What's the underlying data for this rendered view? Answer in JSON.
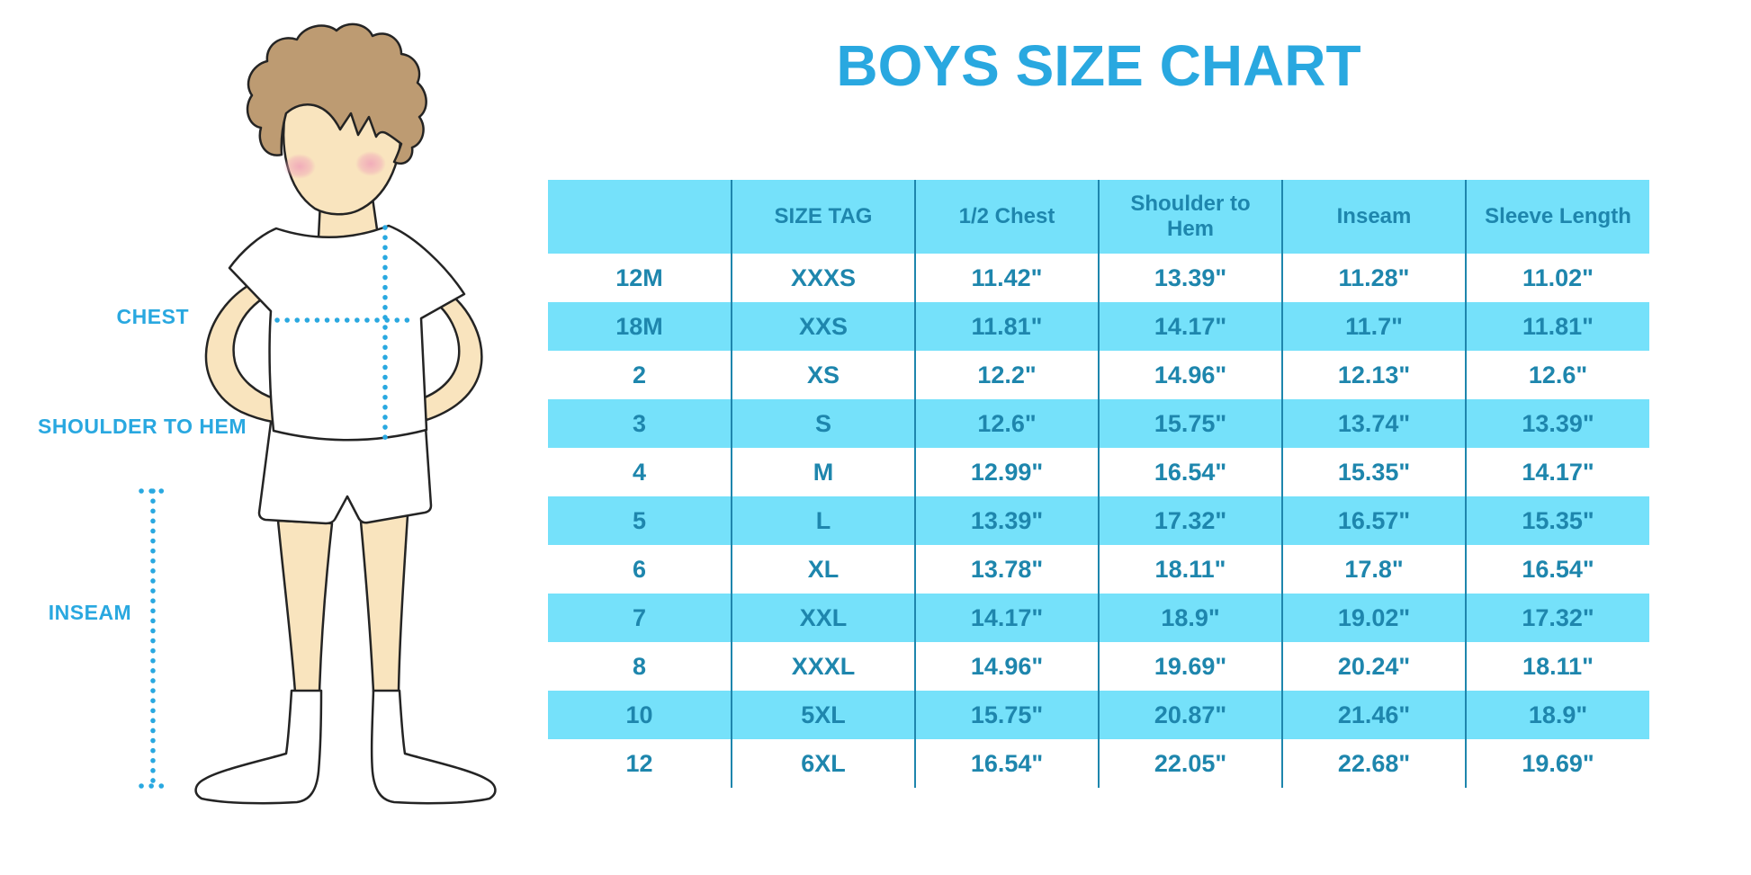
{
  "page": {
    "title": "BOYS SIZE CHART"
  },
  "measure_labels": {
    "chest": "CHEST",
    "shoulder_to_hem": "SHOULDER TO HEM",
    "inseam": "INSEAM"
  },
  "chart_data": {
    "type": "table",
    "title": "BOYS SIZE CHART",
    "units": "inches",
    "columns": [
      "",
      "SIZE TAG",
      "1/2 Chest",
      "Shoulder to\nHem",
      "Inseam",
      "Sleeve Length"
    ],
    "rows": [
      [
        "12M",
        "XXXS",
        "11.42\"",
        "13.39\"",
        "11.28\"",
        "11.02\""
      ],
      [
        "18M",
        "XXS",
        "11.81\"",
        "14.17\"",
        "11.7\"",
        "11.81\""
      ],
      [
        "2",
        "XS",
        "12.2\"",
        "14.96\"",
        "12.13\"",
        "12.6\""
      ],
      [
        "3",
        "S",
        "12.6\"",
        "15.75\"",
        "13.74\"",
        "13.39\""
      ],
      [
        "4",
        "M",
        "12.99\"",
        "16.54\"",
        "15.35\"",
        "14.17\""
      ],
      [
        "5",
        "L",
        "13.39\"",
        "17.32\"",
        "16.57\"",
        "15.35\""
      ],
      [
        "6",
        "XL",
        "13.78\"",
        "18.11\"",
        "17.8\"",
        "16.54\""
      ],
      [
        "7",
        "XXL",
        "14.17\"",
        "18.9\"",
        "19.02\"",
        "17.32\""
      ],
      [
        "8",
        "XXXL",
        "14.96\"",
        "19.69\"",
        "20.24\"",
        "18.11\""
      ],
      [
        "10",
        "5XL",
        "15.75\"",
        "20.87\"",
        "21.46\"",
        "18.9\""
      ],
      [
        "12",
        "6XL",
        "16.54\"",
        "22.05\"",
        "22.68\"",
        "19.69\""
      ]
    ]
  },
  "colors": {
    "accent_blue": "#29A8E0",
    "cyan_fill": "#75E1FA",
    "table_text": "#1E86AD",
    "line_blue": "#1E86AD",
    "skin": "#F9E4BE",
    "hair": "#BD9B72",
    "blush": "#F0A6B9",
    "outline": "#242424"
  }
}
